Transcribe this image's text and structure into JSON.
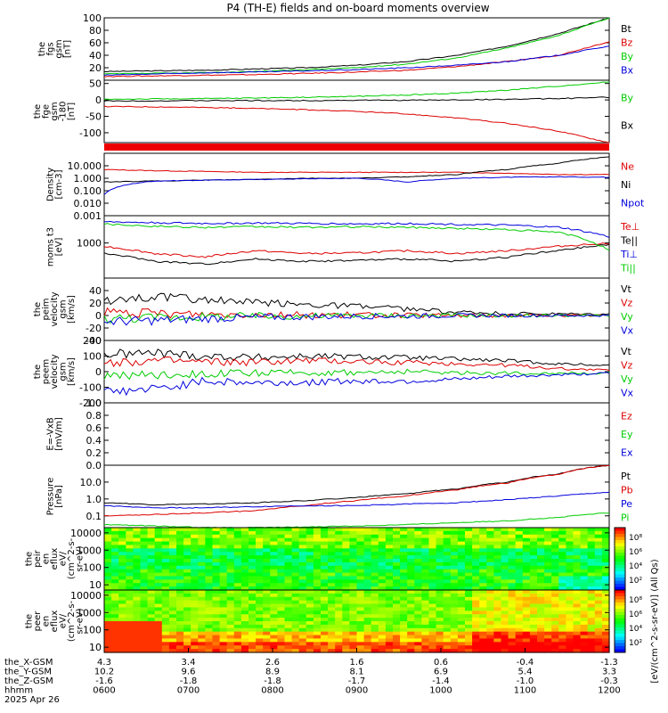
{
  "title": "P4 (TH-E) fields and on-board moments overview",
  "colors": {
    "black": "#000000",
    "red": "#dd0000",
    "green": "#00cc00",
    "blue": "#0000dd",
    "stripe": "#ee0000"
  },
  "chart_data": [
    {
      "id": "fgs-gsm",
      "type": "line",
      "ylabel": [
        "the",
        "fgs",
        "gsm",
        "[nT]"
      ],
      "ylim": [
        0,
        100
      ],
      "yscale": "linear",
      "yticks": [
        20,
        40,
        60,
        80,
        100
      ],
      "series": [
        {
          "name": "Bt",
          "color": "black",
          "values": [
            14,
            15,
            16,
            18,
            20,
            24,
            30,
            40,
            55,
            75,
            100
          ]
        },
        {
          "name": "Bz",
          "color": "red",
          "values": [
            6,
            7,
            8,
            9,
            11,
            13,
            16,
            22,
            30,
            40,
            62
          ]
        },
        {
          "name": "By",
          "color": "green",
          "values": [
            10,
            11,
            12,
            14,
            17,
            20,
            26,
            36,
            52,
            72,
            100
          ]
        },
        {
          "name": "Bx",
          "color": "blue",
          "values": [
            8,
            10,
            12,
            13,
            15,
            17,
            20,
            24,
            30,
            40,
            55
          ]
        }
      ],
      "legend": [
        "Bt",
        "Bz",
        "By",
        "Bx"
      ]
    },
    {
      "id": "fge-gsm",
      "type": "line",
      "ylabel": [
        "the",
        "fge",
        "gsm",
        "-180",
        "[nT]"
      ],
      "ylim": [
        -130,
        60
      ],
      "yscale": "linear",
      "yticks": [
        -100,
        -50,
        0,
        50
      ],
      "series": [
        {
          "name": "By",
          "color": "green",
          "values": [
            2,
            3,
            4,
            6,
            8,
            11,
            15,
            21,
            30,
            42,
            55
          ]
        },
        {
          "name": "Bx",
          "color": "black",
          "values": [
            -3,
            -3,
            -2,
            -2,
            -2,
            -1,
            -1,
            0,
            2,
            4,
            8
          ]
        },
        {
          "name": "",
          "color": "red",
          "values": [
            -20,
            -21,
            -23,
            -26,
            -30,
            -35,
            -43,
            -55,
            -72,
            -95,
            -130
          ]
        }
      ],
      "legend": [
        "By",
        "Bx"
      ]
    },
    {
      "id": "state-stripe",
      "type": "bar",
      "ylabel": [],
      "stripe": true
    },
    {
      "id": "density",
      "type": "line",
      "ylabel": [
        "Density",
        "[cm-3]"
      ],
      "ylim": [
        0.001,
        100
      ],
      "yscale": "log",
      "yticks": [
        0.001,
        0.01,
        0.1,
        1,
        10
      ],
      "yticklabels": [
        "0.001",
        "0.010",
        "0.100",
        "1.000",
        "10.000"
      ],
      "series": [
        {
          "name": "Ne",
          "color": "red",
          "values": [
            5,
            4,
            3.5,
            3,
            3,
            3,
            3,
            3,
            2.5,
            2,
            2
          ]
        },
        {
          "name": "Ni",
          "color": "black",
          "values": [
            0.5,
            0.6,
            0.7,
            0.8,
            1,
            1,
            1.3,
            2,
            5,
            15,
            50
          ]
        },
        {
          "name": "Npot",
          "color": "blue",
          "values": [
            0.05,
            0.6,
            0.7,
            0.8,
            0.9,
            1,
            0.5,
            1,
            1.2,
            1.3,
            1.2
          ]
        }
      ],
      "legend": [
        "Ne",
        "Ni",
        "Npot"
      ]
    },
    {
      "id": "moms-t3",
      "type": "line",
      "ylabel": [
        "moms t3",
        "[eV]"
      ],
      "ylim": [
        100,
        6000
      ],
      "yscale": "log",
      "yticks": [
        1000
      ],
      "yticklabels": [
        "1000"
      ],
      "series": [
        {
          "name": "Te⊥",
          "color": "red",
          "values": [
            800,
            500,
            400,
            600,
            500,
            520,
            600,
            500,
            600,
            800,
            1000
          ]
        },
        {
          "name": "Te||",
          "color": "black",
          "values": [
            500,
            300,
            250,
            350,
            300,
            320,
            350,
            300,
            400,
            600,
            900
          ]
        },
        {
          "name": "Ti⊥",
          "color": "blue",
          "values": [
            4000,
            3800,
            3600,
            3700,
            3600,
            3500,
            3600,
            3400,
            3200,
            2800,
            1500
          ]
        },
        {
          "name": "Ti||",
          "color": "green",
          "values": [
            3500,
            3000,
            2800,
            2900,
            2800,
            2900,
            2800,
            2600,
            2400,
            2000,
            600
          ]
        }
      ],
      "legend": [
        "Te⊥",
        "Te||",
        "Ti⊥",
        "Ti||"
      ]
    },
    {
      "id": "peim-velocity",
      "type": "line",
      "ylabel": [
        "the",
        "peim",
        "velocity",
        "gsm",
        "[km/s]"
      ],
      "ylim": [
        -40,
        60
      ],
      "yscale": "linear",
      "yticks": [
        -40,
        -20,
        0,
        20,
        40
      ],
      "noise": 1,
      "series": [
        {
          "name": "Vt",
          "color": "black",
          "values": [
            25,
            30,
            25,
            20,
            18,
            15,
            10,
            5,
            3,
            2,
            2
          ]
        },
        {
          "name": "Vz",
          "color": "red",
          "values": [
            5,
            3,
            2,
            2,
            1,
            1,
            0,
            0,
            0,
            0,
            0
          ]
        },
        {
          "name": "Vy",
          "color": "green",
          "values": [
            -5,
            -3,
            -2,
            -1,
            -1,
            0,
            0,
            0,
            0,
            0,
            0
          ]
        },
        {
          "name": "Vx",
          "color": "blue",
          "values": [
            -10,
            -8,
            -5,
            -3,
            -2,
            -1,
            -1,
            0,
            0,
            0,
            0
          ]
        }
      ],
      "legend": [
        "Vt",
        "Vz",
        "Vy",
        "Vx"
      ]
    },
    {
      "id": "peem-velocity",
      "type": "line",
      "ylabel": [
        "the",
        "peem",
        "velocity",
        "gsm",
        "[km/s]"
      ],
      "ylim": [
        -200,
        200
      ],
      "yscale": "linear",
      "yticks": [
        -200,
        -100,
        0,
        100,
        200
      ],
      "noise": 1,
      "series": [
        {
          "name": "Vt",
          "color": "black",
          "values": [
            110,
            120,
            100,
            90,
            100,
            95,
            90,
            80,
            70,
            50,
            40
          ]
        },
        {
          "name": "Vz",
          "color": "red",
          "values": [
            60,
            70,
            60,
            60,
            70,
            65,
            60,
            50,
            40,
            20,
            10
          ]
        },
        {
          "name": "Vy",
          "color": "green",
          "values": [
            -20,
            -20,
            -10,
            -10,
            -5,
            -5,
            0,
            -5,
            -10,
            -10,
            -10
          ]
        },
        {
          "name": "Vx",
          "color": "blue",
          "values": [
            -130,
            -110,
            -60,
            -70,
            -70,
            -60,
            -60,
            -50,
            -30,
            -20,
            -10
          ]
        }
      ],
      "legend": [
        "Vt",
        "Vz",
        "Vy",
        "Vx"
      ]
    },
    {
      "id": "efield",
      "type": "line",
      "ylabel": [
        "E=-VxB",
        "[mV/m]"
      ],
      "ylim": [
        0,
        1.0
      ],
      "yscale": "linear",
      "yticks": [
        0,
        0.2,
        0.4,
        0.6,
        0.8,
        1.0
      ],
      "yticklabels": [
        "0.0",
        "0.2",
        "0.4",
        "0.6",
        "0.8",
        "1.0"
      ],
      "series": [],
      "legend": [
        "Ez",
        "Ey",
        "Ex"
      ],
      "legend_colors": [
        "red",
        "green",
        "blue"
      ]
    },
    {
      "id": "pressure",
      "type": "line",
      "ylabel": [
        "Pressure",
        "[nPa]"
      ],
      "ylim": [
        0.02,
        100
      ],
      "yscale": "log",
      "yticks": [
        0.1,
        1,
        10
      ],
      "yticklabels": [
        "0.1",
        "1.0",
        "10.0"
      ],
      "series": [
        {
          "name": "Pt",
          "color": "black",
          "values": [
            0.6,
            0.45,
            0.5,
            0.6,
            0.8,
            1.2,
            2,
            4,
            10,
            30,
            100
          ]
        },
        {
          "name": "Pb",
          "color": "red",
          "values": [
            0.1,
            0.12,
            0.15,
            0.2,
            0.4,
            0.8,
            1.5,
            3.5,
            9,
            28,
            100
          ]
        },
        {
          "name": "Pe",
          "color": "blue",
          "values": [
            0.4,
            0.3,
            0.3,
            0.35,
            0.4,
            0.4,
            0.5,
            0.6,
            0.9,
            1.5,
            2.5
          ]
        },
        {
          "name": "Pi",
          "color": "green",
          "values": [
            0.03,
            0.025,
            0.02,
            0.02,
            0.022,
            0.025,
            0.03,
            0.04,
            0.05,
            0.08,
            0.15
          ]
        }
      ],
      "legend": [
        "Pt",
        "Pb",
        "Pe",
        "Pi"
      ]
    },
    {
      "id": "peir-eflux",
      "type": "heatmap",
      "ylabel": [
        "the",
        "peir",
        "en",
        "eflux",
        "eV/",
        "(cm^2-s-",
        "sr-eV)"
      ],
      "ylim": [
        5,
        20000
      ],
      "yscale": "log",
      "yticks": [
        10,
        100,
        1000,
        10000
      ],
      "yticklabels": [
        "10",
        "100",
        "1000",
        "10000"
      ],
      "colorbar": {
        "labels": [
          "10⁸",
          "10⁶",
          "10⁴",
          "10²"
        ]
      }
    },
    {
      "id": "peer-eflux",
      "type": "heatmap",
      "ylabel": [
        "the",
        "peer",
        "en",
        "eflux",
        "eV/",
        "(cm^2-s-",
        "sr-eV)"
      ],
      "ylim": [
        5,
        20000
      ],
      "yscale": "log",
      "yticks": [
        10,
        100,
        1000,
        10000
      ],
      "yticklabels": [
        "10",
        "100",
        "1000",
        "10000"
      ],
      "colorbar": {
        "labels": [
          "10⁸",
          "10⁶",
          "10⁴",
          "10²"
        ]
      }
    }
  ],
  "colorbar_unit": "[eV/(cm^2-s-sr-eV)] (All Qs)",
  "x_axis": {
    "row_labels": [
      "the_X-GSM",
      "the_Y-GSM",
      "the_Z-GSM",
      "hhmm",
      "2025 Apr 26"
    ],
    "ticks": [
      {
        "x": "4.3",
        "y": "10.2",
        "z": "-1.6",
        "t": "0600"
      },
      {
        "x": "3.4",
        "y": "9.6",
        "z": "-1.8",
        "t": "0700"
      },
      {
        "x": "2.6",
        "y": "8.9",
        "z": "-1.8",
        "t": "0800"
      },
      {
        "x": "1.6",
        "y": "8.1",
        "z": "-1.7",
        "t": "0900"
      },
      {
        "x": "0.6",
        "y": "6.9",
        "z": "-1.4",
        "t": "1000"
      },
      {
        "x": "-0.4",
        "y": "5.4",
        "z": "-1.0",
        "t": "1100"
      },
      {
        "x": "-1.3",
        "y": "3.3",
        "z": "-0.3",
        "t": "1200"
      }
    ]
  }
}
